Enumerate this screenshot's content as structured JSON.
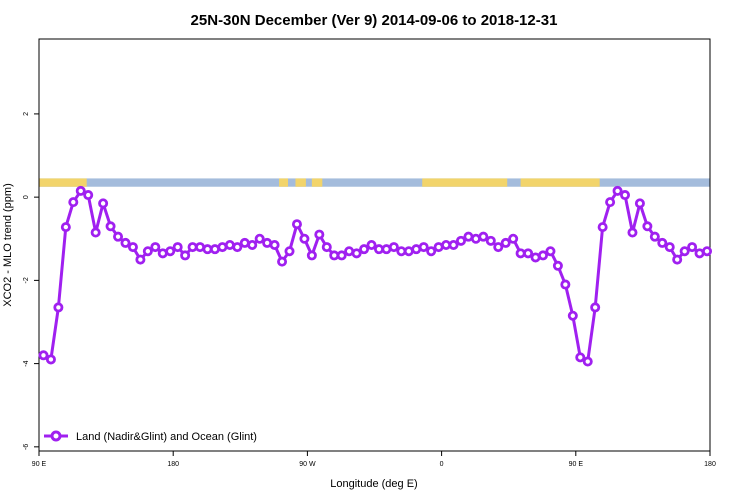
{
  "chart_data": {
    "type": "line",
    "title": "25N-30N December (Ver 9)   2014-09-06 to 2018-12-31",
    "xlabel": "Longitude (deg E)",
    "ylabel": "XCO2 - MLO trend (ppm)",
    "xlim": [
      90,
      540
    ],
    "ylim": [
      -6.1,
      3.8
    ],
    "x_ticks": [
      {
        "value": 90,
        "label": "90 E"
      },
      {
        "value": 180,
        "label": "180"
      },
      {
        "value": 270,
        "label": "90 W"
      },
      {
        "value": 360,
        "label": "0"
      },
      {
        "value": 450,
        "label": "90 E"
      },
      {
        "value": 540,
        "label": "180"
      }
    ],
    "y_ticks": [
      {
        "value": 2,
        "label": "2"
      },
      {
        "value": 0,
        "label": "0"
      },
      {
        "value": -2,
        "label": "-2"
      },
      {
        "value": -4,
        "label": "-4"
      },
      {
        "value": -6,
        "label": "-6"
      }
    ],
    "grid": false,
    "legend_position": "bottom-left",
    "colors": {
      "series": "#a020f0",
      "land": "#f2d46b",
      "ocean": "#a4bcdc"
    },
    "land_ocean_strip": {
      "y_range": [
        0.25,
        0.45
      ],
      "land_spans": [
        [
          90,
          122
        ],
        [
          251,
          257
        ],
        [
          262,
          269
        ],
        [
          273,
          280
        ],
        [
          347,
          404
        ],
        [
          413,
          466
        ]
      ]
    },
    "series": [
      {
        "name": "Land (Nadir&Glint) and Ocean (Glint)",
        "x": [
          93,
          98,
          103,
          108,
          113,
          118,
          123,
          128,
          133,
          138,
          143,
          148,
          153,
          158,
          163,
          168,
          173,
          178,
          183,
          188,
          193,
          198,
          203,
          208,
          213,
          218,
          223,
          228,
          233,
          238,
          243,
          248,
          253,
          258,
          263,
          268,
          273,
          278,
          283,
          288,
          293,
          298,
          303,
          308,
          313,
          318,
          323,
          328,
          333,
          338,
          343,
          348,
          353,
          358,
          363,
          368,
          373,
          378,
          383,
          388,
          393,
          398,
          403,
          408,
          413,
          418,
          423,
          428,
          433,
          438,
          443,
          448,
          453,
          458,
          463,
          468,
          473,
          478,
          483,
          488,
          493,
          498,
          503,
          508,
          513,
          518,
          523,
          528,
          533,
          538
        ],
        "values": [
          -3.8,
          -3.9,
          -2.65,
          -0.72,
          -0.12,
          0.15,
          0.05,
          -0.85,
          -0.15,
          -0.7,
          -0.95,
          -1.1,
          -1.2,
          -1.5,
          -1.3,
          -1.2,
          -1.35,
          -1.3,
          -1.2,
          -1.4,
          -1.2,
          -1.2,
          -1.25,
          -1.25,
          -1.2,
          -1.15,
          -1.2,
          -1.1,
          -1.15,
          -1.0,
          -1.1,
          -1.15,
          -1.55,
          -1.3,
          -0.65,
          -1.0,
          -1.4,
          -0.9,
          -1.2,
          -1.4,
          -1.4,
          -1.3,
          -1.35,
          -1.25,
          -1.15,
          -1.25,
          -1.25,
          -1.2,
          -1.3,
          -1.3,
          -1.25,
          -1.2,
          -1.3,
          -1.2,
          -1.15,
          -1.15,
          -1.05,
          -0.95,
          -1.0,
          -0.95,
          -1.05,
          -1.2,
          -1.1,
          -1.0,
          -1.35,
          -1.35,
          -1.45,
          -1.4,
          -1.3,
          -1.65,
          -2.1,
          -2.85,
          -3.85,
          -3.95,
          -2.65,
          -0.72,
          -0.12,
          0.15,
          0.05,
          -0.85,
          -0.15,
          -0.7,
          -0.95,
          -1.1,
          -1.2,
          -1.5,
          -1.3,
          -1.2,
          -1.35,
          -1.3
        ]
      }
    ]
  }
}
